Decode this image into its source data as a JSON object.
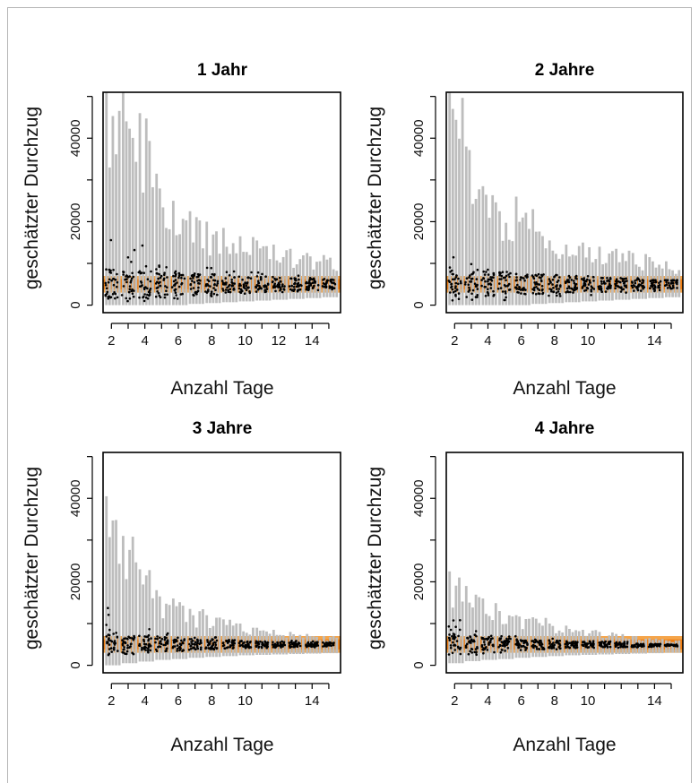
{
  "colors": {
    "band_outer": "#f5a54a",
    "band_inner": "#f07f12",
    "range_bar": "#bdbdbd",
    "point": "#000000",
    "axis": "#000000"
  },
  "chart_data": [
    {
      "type": "scatter",
      "title": "1 Jahr",
      "xlabel": "Anzahl Tage",
      "ylabel": "geschätzter Durchzug",
      "xticks": [
        2,
        4,
        6,
        8,
        10,
        12,
        14
      ],
      "yticks": [
        0,
        20000,
        40000
      ],
      "xlim": [
        1.5,
        15.7
      ],
      "ylim": [
        -1800,
        51000
      ],
      "reference_band": {
        "outer": [
          3000,
          7000
        ],
        "inner": [
          3800,
          6200
        ]
      },
      "x": [
        2,
        3,
        4,
        5,
        6,
        7,
        8,
        9,
        10,
        11,
        12,
        13,
        14,
        15
      ],
      "range_max": [
        51000,
        51000,
        46000,
        31500,
        25000,
        22500,
        20000,
        18500,
        16500,
        15500,
        14500,
        13500,
        12500,
        12000
      ],
      "point_median": [
        5000,
        5000,
        5000,
        5000,
        5000,
        5000,
        5000,
        5000,
        5000,
        5000,
        5000,
        5000,
        5000,
        5000
      ],
      "point_max": [
        18000,
        14000,
        14500,
        9500,
        9500,
        9000,
        9000,
        8500,
        8000,
        8000,
        7500,
        7500,
        7000,
        6500
      ],
      "point_min": [
        500,
        800,
        1000,
        1200,
        1500,
        1800,
        2000,
        2200,
        2400,
        2600,
        2800,
        3000,
        3200,
        3400
      ]
    },
    {
      "type": "scatter",
      "title": "2 Jahre",
      "xlabel": "Anzahl Tage",
      "ylabel": "geschätzter Durchzug",
      "xticks": [
        2,
        4,
        6,
        8,
        10,
        14
      ],
      "yticks": [
        0,
        20000,
        40000
      ],
      "xlim": [
        1.5,
        15.7
      ],
      "ylim": [
        -1800,
        51000
      ],
      "reference_band": {
        "outer": [
          3000,
          7000
        ],
        "inner": [
          3800,
          6200
        ]
      },
      "x": [
        2,
        3,
        4,
        5,
        6,
        7,
        8,
        9,
        10,
        11,
        12,
        13,
        14,
        15
      ],
      "range_max": [
        51000,
        38000,
        28500,
        22500,
        26000,
        23000,
        15500,
        14500,
        15000,
        14000,
        13500,
        12500,
        11500,
        10500
      ],
      "point_median": [
        5000,
        5000,
        5000,
        5000,
        5000,
        5000,
        5000,
        5000,
        5000,
        5000,
        5000,
        5000,
        5000,
        5000
      ],
      "point_max": [
        13000,
        10000,
        9000,
        8000,
        8000,
        7500,
        7500,
        7000,
        7000,
        6500,
        6500,
        6500,
        6000,
        6000
      ],
      "point_min": [
        500,
        800,
        1000,
        1200,
        1500,
        1800,
        2000,
        2200,
        2400,
        2600,
        2800,
        3000,
        3200,
        3400
      ]
    },
    {
      "type": "scatter",
      "title": "3 Jahre",
      "xlabel": "Anzahl Tage",
      "ylabel": "geschätzter Durchzug",
      "xticks": [
        2,
        4,
        6,
        8,
        10,
        14
      ],
      "yticks": [
        0,
        20000,
        40000
      ],
      "xlim": [
        1.5,
        15.7
      ],
      "ylim": [
        -1800,
        51000
      ],
      "reference_band": {
        "outer": [
          3000,
          7000
        ],
        "inner": [
          3800,
          6200
        ]
      },
      "x": [
        2,
        3,
        4,
        5,
        6,
        7,
        8,
        9,
        10,
        11,
        12,
        13,
        14,
        15
      ],
      "range_max": [
        40500,
        31000,
        23000,
        18000,
        16000,
        13500,
        12000,
        11000,
        10000,
        9000,
        8500,
        8000,
        7500,
        7000
      ],
      "point_median": [
        5000,
        5000,
        5000,
        5000,
        5000,
        5000,
        5000,
        5000,
        5000,
        5000,
        5000,
        5000,
        5000,
        5000
      ],
      "point_max": [
        14000,
        10000,
        9000,
        8000,
        7500,
        7000,
        7000,
        6500,
        6500,
        6000,
        6000,
        6000,
        5800,
        5600
      ],
      "point_min": [
        1500,
        2000,
        2400,
        2800,
        3000,
        3300,
        3500,
        3700,
        3900,
        4000,
        4100,
        4200,
        4300,
        4400
      ]
    },
    {
      "type": "scatter",
      "title": "4 Jahre",
      "xlabel": "Anzahl Tage",
      "ylabel": "geschätzter Durchzug",
      "xticks": [
        2,
        4,
        6,
        8,
        10,
        14
      ],
      "yticks": [
        0,
        20000,
        40000
      ],
      "xlim": [
        1.5,
        15.7
      ],
      "ylim": [
        -1800,
        51000
      ],
      "reference_band": {
        "outer": [
          3000,
          7000
        ],
        "inner": [
          3800,
          6200
        ]
      },
      "x": [
        2,
        3,
        4,
        5,
        6,
        7,
        8,
        9,
        10,
        11,
        12,
        13,
        14,
        15
      ],
      "range_max": [
        22500,
        19000,
        16000,
        13000,
        12000,
        11500,
        10000,
        9500,
        8500,
        8000,
        7500,
        7000,
        6500,
        6000
      ],
      "point_median": [
        5000,
        5000,
        5000,
        5000,
        5000,
        5000,
        5000,
        5000,
        5000,
        5000,
        5000,
        4800,
        4800,
        4800
      ],
      "point_max": [
        11000,
        9000,
        8000,
        7500,
        7000,
        6500,
        6500,
        6000,
        6000,
        5800,
        5600,
        5400,
        5200,
        5000
      ],
      "point_min": [
        2000,
        2500,
        2800,
        3000,
        3300,
        3500,
        3700,
        3900,
        4000,
        4100,
        4200,
        4300,
        4400,
        4500
      ]
    }
  ]
}
